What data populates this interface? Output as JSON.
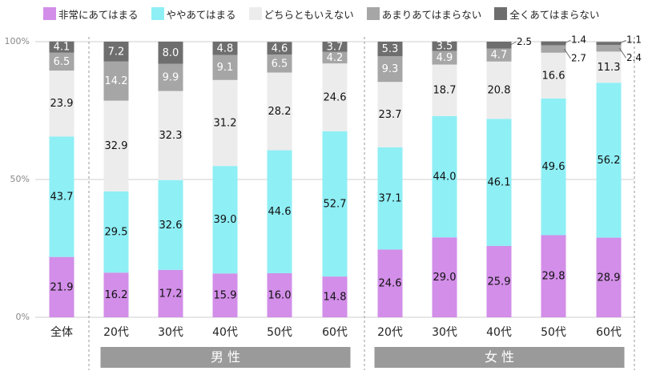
{
  "chart_data": {
    "type": "bar",
    "stacked": true,
    "percent_stacked": true,
    "categories": [
      "全体",
      "20代",
      "30代",
      "40代",
      "50代",
      "60代",
      "20代",
      "30代",
      "40代",
      "50代",
      "60代"
    ],
    "groups": [
      {
        "label": "男 性",
        "categories": [
          1,
          2,
          3,
          4,
          5
        ]
      },
      {
        "label": "女 性",
        "categories": [
          6,
          7,
          8,
          9,
          10
        ]
      }
    ],
    "series": [
      {
        "name": "非常にあてはまる",
        "color": "#d28ee8",
        "values": [
          21.9,
          16.2,
          17.2,
          15.9,
          16.0,
          14.8,
          24.6,
          29.0,
          25.9,
          29.8,
          28.9
        ]
      },
      {
        "name": "ややあてはまる",
        "color": "#8eeff5",
        "values": [
          43.7,
          29.5,
          32.6,
          39.0,
          44.6,
          52.7,
          37.1,
          44.0,
          46.1,
          49.6,
          56.2
        ]
      },
      {
        "name": "どちらともいえない",
        "color": "#ececec",
        "values": [
          23.9,
          32.9,
          32.3,
          31.2,
          28.2,
          24.6,
          23.7,
          18.7,
          20.8,
          16.6,
          11.3
        ]
      },
      {
        "name": "あまりあてはまらない",
        "color": "#a6a6a6",
        "values": [
          6.5,
          14.2,
          9.9,
          9.1,
          6.5,
          4.2,
          9.3,
          4.9,
          4.7,
          2.7,
          2.4
        ]
      },
      {
        "name": "全くあてはまらない",
        "color": "#6e6e6e",
        "values": [
          4.1,
          7.2,
          8.0,
          4.8,
          4.6,
          3.7,
          5.3,
          3.5,
          2.5,
          1.4,
          1.1
        ]
      }
    ],
    "y_ticks": [
      "0%",
      "50%",
      "100%"
    ],
    "ylim": [
      0,
      100
    ],
    "grid": true,
    "legend_position": "top"
  }
}
